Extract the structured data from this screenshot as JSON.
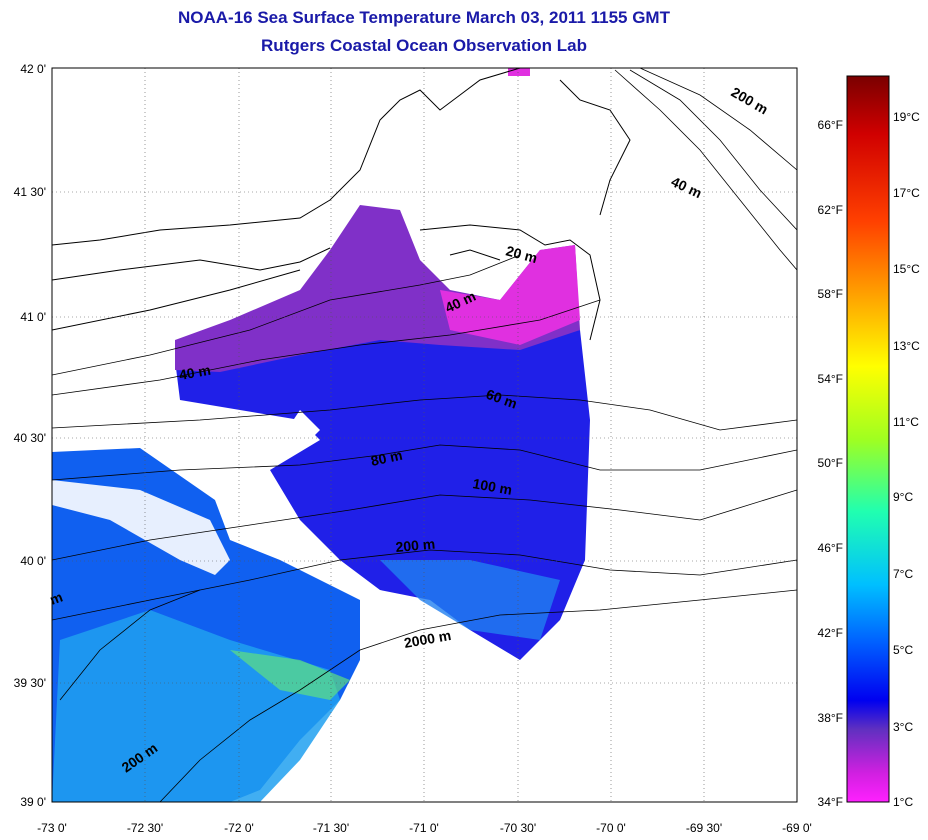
{
  "title": "NOAA-16 Sea Surface Temperature March 03, 2011 1155 GMT",
  "subtitle": "Rutgers Coastal Ocean Observation Lab",
  "lat_labels": [
    "42 0'",
    "41 30'",
    "41 0'",
    "40 30'",
    "40 0'",
    "39 30'",
    "39 0'"
  ],
  "lon_labels": [
    "-73 0'",
    "-72 30'",
    "-72 0'",
    "-71 30'",
    "-71 0'",
    "-70 30'",
    "-70 0'",
    "-69 30'",
    "-69 0'"
  ],
  "contour_labels": [
    "200 m",
    "40 m",
    "20 m",
    "40 m",
    "40 m",
    "60 m",
    "80 m",
    "100 m",
    "200 m",
    "2000 m",
    "m",
    "200 m"
  ],
  "colorbar": {
    "fahrenheit": [
      "66°F",
      "62°F",
      "58°F",
      "54°F",
      "50°F",
      "46°F",
      "42°F",
      "38°F",
      "34°F"
    ],
    "celsius": [
      "19°C",
      "17°C",
      "15°C",
      "13°C",
      "11°C",
      "9°C",
      "7°C",
      "5°C",
      "3°C",
      "1°C"
    ],
    "colors": [
      "#8b0000",
      "#ff0000",
      "#ff8000",
      "#ffff00",
      "#80ff00",
      "#00ff80",
      "#00ffff",
      "#0080ff",
      "#0000ff",
      "#8000c0",
      "#ff00ff"
    ]
  }
}
